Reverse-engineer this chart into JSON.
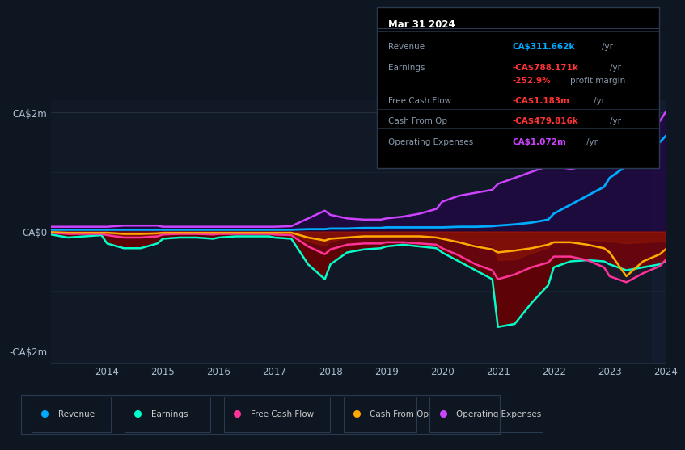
{
  "bg_color": "#0e1621",
  "plot_bg_color": "#111927",
  "grid_color": "#1e2d3d",
  "text_color": "#8899aa",
  "highlight_right_color": "#1a2640",
  "years": [
    2013.0,
    2013.3,
    2013.6,
    2013.9,
    2014.0,
    2014.3,
    2014.6,
    2014.9,
    2015.0,
    2015.3,
    2015.6,
    2015.9,
    2016.0,
    2016.3,
    2016.6,
    2016.9,
    2017.0,
    2017.3,
    2017.6,
    2017.9,
    2018.0,
    2018.3,
    2018.6,
    2018.9,
    2019.0,
    2019.3,
    2019.6,
    2019.9,
    2020.0,
    2020.3,
    2020.6,
    2020.9,
    2021.0,
    2021.3,
    2021.6,
    2021.9,
    2022.0,
    2022.3,
    2022.6,
    2022.9,
    2023.0,
    2023.3,
    2023.6,
    2023.9,
    2024.0
  ],
  "revenue": [
    0.03,
    0.03,
    0.03,
    0.03,
    0.03,
    0.03,
    0.03,
    0.03,
    0.03,
    0.03,
    0.03,
    0.03,
    0.03,
    0.03,
    0.03,
    0.03,
    0.03,
    0.03,
    0.04,
    0.04,
    0.05,
    0.05,
    0.06,
    0.06,
    0.07,
    0.07,
    0.07,
    0.07,
    0.07,
    0.08,
    0.08,
    0.09,
    0.1,
    0.12,
    0.15,
    0.2,
    0.3,
    0.45,
    0.6,
    0.75,
    0.9,
    1.1,
    1.3,
    1.5,
    1.6
  ],
  "earnings": [
    -0.05,
    -0.1,
    -0.08,
    -0.06,
    -0.2,
    -0.28,
    -0.28,
    -0.2,
    -0.12,
    -0.1,
    -0.1,
    -0.12,
    -0.1,
    -0.08,
    -0.08,
    -0.08,
    -0.1,
    -0.12,
    -0.55,
    -0.8,
    -0.55,
    -0.35,
    -0.3,
    -0.28,
    -0.25,
    -0.22,
    -0.25,
    -0.28,
    -0.35,
    -0.5,
    -0.65,
    -0.8,
    -1.6,
    -1.55,
    -1.2,
    -0.9,
    -0.6,
    -0.5,
    -0.48,
    -0.5,
    -0.55,
    -0.65,
    -0.6,
    -0.55,
    -0.5
  ],
  "free_cash_flow": [
    -0.02,
    -0.04,
    -0.04,
    -0.04,
    -0.06,
    -0.1,
    -0.1,
    -0.08,
    -0.05,
    -0.04,
    -0.04,
    -0.05,
    -0.04,
    -0.04,
    -0.04,
    -0.04,
    -0.05,
    -0.06,
    -0.25,
    -0.38,
    -0.3,
    -0.22,
    -0.2,
    -0.2,
    -0.18,
    -0.18,
    -0.2,
    -0.22,
    -0.28,
    -0.4,
    -0.55,
    -0.65,
    -0.8,
    -0.72,
    -0.6,
    -0.52,
    -0.42,
    -0.42,
    -0.48,
    -0.6,
    -0.75,
    -0.85,
    -0.7,
    -0.58,
    -0.48
  ],
  "cash_from_op": [
    -0.01,
    -0.02,
    -0.02,
    -0.02,
    -0.02,
    -0.04,
    -0.04,
    -0.03,
    -0.02,
    -0.02,
    -0.02,
    -0.02,
    -0.02,
    -0.02,
    -0.02,
    -0.02,
    -0.02,
    -0.02,
    -0.1,
    -0.15,
    -0.12,
    -0.1,
    -0.08,
    -0.08,
    -0.08,
    -0.08,
    -0.08,
    -0.1,
    -0.12,
    -0.18,
    -0.25,
    -0.3,
    -0.35,
    -0.32,
    -0.28,
    -0.22,
    -0.18,
    -0.18,
    -0.22,
    -0.28,
    -0.35,
    -0.75,
    -0.5,
    -0.38,
    -0.3
  ],
  "operating_expenses": [
    0.08,
    0.08,
    0.08,
    0.08,
    0.08,
    0.1,
    0.1,
    0.1,
    0.08,
    0.08,
    0.08,
    0.08,
    0.08,
    0.08,
    0.08,
    0.08,
    0.08,
    0.09,
    0.22,
    0.35,
    0.28,
    0.22,
    0.2,
    0.2,
    0.22,
    0.25,
    0.3,
    0.38,
    0.5,
    0.6,
    0.65,
    0.7,
    0.8,
    0.9,
    1.0,
    1.1,
    1.1,
    1.05,
    1.1,
    1.15,
    1.2,
    1.55,
    1.7,
    1.85,
    2.0
  ],
  "revenue_color": "#00aaff",
  "earnings_color": "#00ffcc",
  "free_cash_flow_color": "#ff3399",
  "cash_from_op_color": "#ffaa00",
  "operating_expenses_color": "#cc44ff",
  "earnings_fill_color": "#6b0000",
  "operating_expenses_fill_color": "#280050",
  "ylim": [
    -2.2,
    2.2
  ],
  "yticks": [
    -2,
    0,
    2
  ],
  "ytick_labels": [
    "-CA$2m",
    "CA$0",
    "CA$2m"
  ],
  "xticks": [
    2014,
    2015,
    2016,
    2017,
    2018,
    2019,
    2020,
    2021,
    2022,
    2023,
    2024
  ],
  "info_box": {
    "title": "Mar 31 2024",
    "rows": [
      {
        "label": "Revenue",
        "value": "CA$311.662k",
        "unit": "/yr",
        "value_color": "#00aaff"
      },
      {
        "label": "Earnings",
        "value": "-CA$788.171k",
        "unit": "/yr",
        "value_color": "#ff3333"
      },
      {
        "label": "",
        "value": "-252.9%",
        "unit": "profit margin",
        "value_color": "#ff3333"
      },
      {
        "label": "Free Cash Flow",
        "value": "-CA$1.183m",
        "unit": "/yr",
        "value_color": "#ff3333"
      },
      {
        "label": "Cash From Op",
        "value": "-CA$479.816k",
        "unit": "/yr",
        "value_color": "#ff3333"
      },
      {
        "label": "Operating Expenses",
        "value": "CA$1.072m",
        "unit": "/yr",
        "value_color": "#cc44ff"
      }
    ]
  },
  "legend": [
    {
      "label": "Revenue",
      "color": "#00aaff"
    },
    {
      "label": "Earnings",
      "color": "#00ffcc"
    },
    {
      "label": "Free Cash Flow",
      "color": "#ff3399"
    },
    {
      "label": "Cash From Op",
      "color": "#ffaa00"
    },
    {
      "label": "Operating Expenses",
      "color": "#cc44ff"
    }
  ]
}
